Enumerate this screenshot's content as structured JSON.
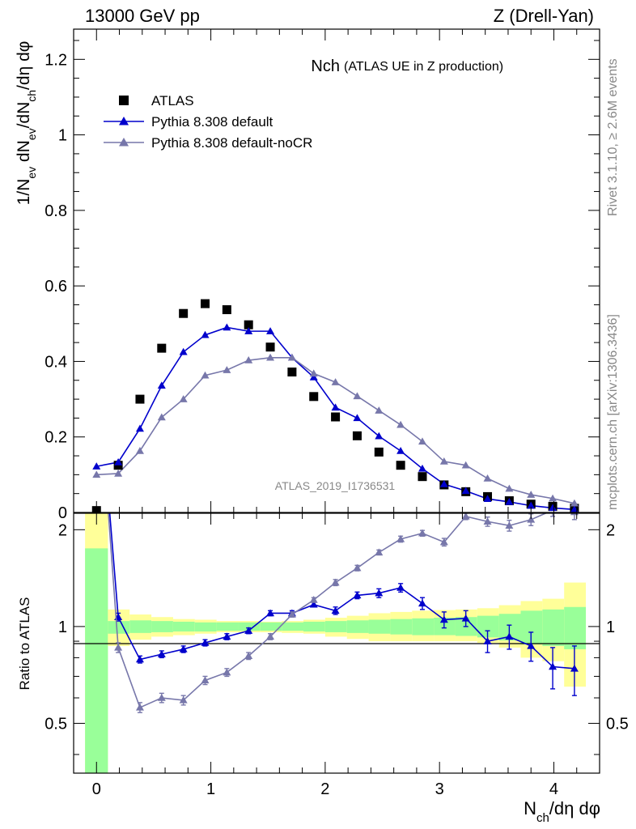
{
  "header": {
    "energy_label": "13000 GeV pp",
    "process_label": "Z (Drell-Yan)"
  },
  "side_labels": {
    "rivet": "Rivet 3.1.10, ≥ 2.6M events",
    "mcplots": "mcplots.cern.ch [arXiv:1306.3436]"
  },
  "chart_data": [
    {
      "type": "scatter",
      "panel": "main",
      "title_main": "Nch",
      "title_sub": "(ATLAS UE in Z production)",
      "analysis_label": "ATLAS_2019_I1736531",
      "ylabel": "1/N_ev dN_ev/dN_ch/dη dφ",
      "xlabel": "N_ch/dη dφ",
      "xlim": [
        -0.2,
        4.4
      ],
      "ylim": [
        0,
        1.28
      ],
      "y_ticks": [
        0,
        0.2,
        0.4,
        0.6,
        0.8,
        1,
        1.2
      ],
      "y_tick_labels": [
        "0",
        "0.2",
        "0.4",
        "0.6",
        "0.8",
        "1",
        "1.2"
      ],
      "x_ticks": [
        0,
        1,
        2,
        3,
        4
      ],
      "x_tick_labels": [
        "0",
        "1",
        "2",
        "3",
        "4"
      ],
      "legend_position": "top-left",
      "x": [
        0.0,
        0.19,
        0.38,
        0.57,
        0.76,
        0.95,
        1.14,
        1.33,
        1.52,
        1.71,
        1.9,
        2.09,
        2.28,
        2.47,
        2.66,
        2.85,
        3.04,
        3.23,
        3.42,
        3.61,
        3.8,
        3.99,
        4.18
      ],
      "series": [
        {
          "name": "ATLAS",
          "color": "#000000",
          "marker": "square",
          "values": [
            0.005,
            0.125,
            0.3,
            0.435,
            0.527,
            0.553,
            0.537,
            0.497,
            0.438,
            0.372,
            0.307,
            0.253,
            0.203,
            0.16,
            0.125,
            0.095,
            0.073,
            0.055,
            0.042,
            0.031,
            0.022,
            0.016,
            0.011
          ]
        },
        {
          "name": "Pythia 8.308 default",
          "color": "#0000cc",
          "marker": "triangle",
          "values": [
            0.122,
            0.133,
            0.222,
            0.336,
            0.425,
            0.47,
            0.49,
            0.48,
            0.48,
            0.41,
            0.358,
            0.278,
            0.25,
            0.202,
            0.163,
            0.116,
            0.075,
            0.057,
            0.036,
            0.028,
            0.018,
            0.012,
            0.008
          ]
        },
        {
          "name": "Pythia 8.308 default-noCR",
          "color": "#7777aa",
          "marker": "triangle",
          "values": [
            0.1,
            0.103,
            0.163,
            0.252,
            0.3,
            0.363,
            0.377,
            0.403,
            0.41,
            0.41,
            0.368,
            0.345,
            0.308,
            0.27,
            0.232,
            0.188,
            0.135,
            0.125,
            0.09,
            0.063,
            0.047,
            0.037,
            0.024
          ]
        }
      ]
    },
    {
      "type": "scatter",
      "panel": "ratio",
      "ylabel": "Ratio to ATLAS",
      "xlim": [
        -0.2,
        4.4
      ],
      "ylim": [
        0.35,
        2.25
      ],
      "y_ticks": [
        0.5,
        1,
        2
      ],
      "y_tick_labels": [
        "0.5",
        "1",
        "2"
      ],
      "band_edges": [
        -0.1,
        0.1,
        0.29,
        0.48,
        0.67,
        0.86,
        1.05,
        1.24,
        1.43,
        1.62,
        1.81,
        2.0,
        2.19,
        2.38,
        2.57,
        2.76,
        2.95,
        3.14,
        3.33,
        3.52,
        3.71,
        3.9,
        4.09,
        4.28
      ],
      "band_stat": [
        [
          0.2,
          1.75
        ],
        [
          0.95,
          1.04
        ],
        [
          0.955,
          1.045
        ],
        [
          0.96,
          1.04
        ],
        [
          0.965,
          1.035
        ],
        [
          0.965,
          1.03
        ],
        [
          0.97,
          1.03
        ],
        [
          0.97,
          1.03
        ],
        [
          0.97,
          1.03
        ],
        [
          0.97,
          1.03
        ],
        [
          0.965,
          1.035
        ],
        [
          0.96,
          1.04
        ],
        [
          0.955,
          1.045
        ],
        [
          0.95,
          1.05
        ],
        [
          0.945,
          1.055
        ],
        [
          0.94,
          1.06
        ],
        [
          0.94,
          1.065
        ],
        [
          0.935,
          1.07
        ],
        [
          0.925,
          1.08
        ],
        [
          0.905,
          1.095
        ],
        [
          0.88,
          1.12
        ],
        [
          0.87,
          1.13
        ],
        [
          0.85,
          1.15
        ]
      ],
      "band_total": [
        [
          0.1,
          2.25
        ],
        [
          0.87,
          1.13
        ],
        [
          0.91,
          1.09
        ],
        [
          0.93,
          1.07
        ],
        [
          0.94,
          1.055
        ],
        [
          0.95,
          1.05
        ],
        [
          0.96,
          1.04
        ],
        [
          0.96,
          1.04
        ],
        [
          0.96,
          1.035
        ],
        [
          0.955,
          1.04
        ],
        [
          0.95,
          1.05
        ],
        [
          0.93,
          1.065
        ],
        [
          0.915,
          1.08
        ],
        [
          0.9,
          1.1
        ],
        [
          0.9,
          1.11
        ],
        [
          0.9,
          1.12
        ],
        [
          0.9,
          1.125
        ],
        [
          0.9,
          1.13
        ],
        [
          0.89,
          1.14
        ],
        [
          0.86,
          1.165
        ],
        [
          0.8,
          1.2
        ],
        [
          0.78,
          1.22
        ],
        [
          0.65,
          1.37
        ]
      ],
      "x": [
        0.19,
        0.38,
        0.57,
        0.76,
        0.95,
        1.14,
        1.33,
        1.52,
        1.71,
        1.9,
        2.09,
        2.28,
        2.47,
        2.66,
        2.85,
        3.04,
        3.23,
        3.42,
        3.61,
        3.8,
        3.99,
        4.18
      ],
      "series": [
        {
          "name": "Pythia 8.308 default",
          "color": "#0000cc",
          "values": [
            1.07,
            0.79,
            0.82,
            0.85,
            0.89,
            0.93,
            0.97,
            1.1,
            1.1,
            1.17,
            1.12,
            1.25,
            1.27,
            1.32,
            1.18,
            1.05,
            1.06,
            0.9,
            0.93,
            0.87,
            0.75,
            0.74
          ],
          "errors": [
            0.03,
            0.02,
            0.02,
            0.02,
            0.02,
            0.02,
            0.02,
            0.02,
            0.02,
            0.02,
            0.03,
            0.03,
            0.04,
            0.04,
            0.05,
            0.06,
            0.06,
            0.07,
            0.08,
            0.09,
            0.11,
            0.13
          ]
        },
        {
          "name": "Pythia 8.308 default-noCR",
          "color": "#7777aa",
          "values": [
            0.86,
            0.56,
            0.6,
            0.59,
            0.68,
            0.72,
            0.81,
            0.93,
            1.09,
            1.21,
            1.37,
            1.52,
            1.7,
            1.87,
            1.95,
            1.83,
            2.2,
            2.12,
            2.06,
            2.15,
            2.3,
            2.27
          ],
          "errors": [
            0.03,
            0.02,
            0.02,
            0.02,
            0.02,
            0.02,
            0.02,
            0.02,
            0.02,
            0.02,
            0.03,
            0.03,
            0.03,
            0.04,
            0.04,
            0.05,
            0.05,
            0.07,
            0.08,
            0.09,
            0.1,
            0.12
          ]
        }
      ]
    }
  ]
}
